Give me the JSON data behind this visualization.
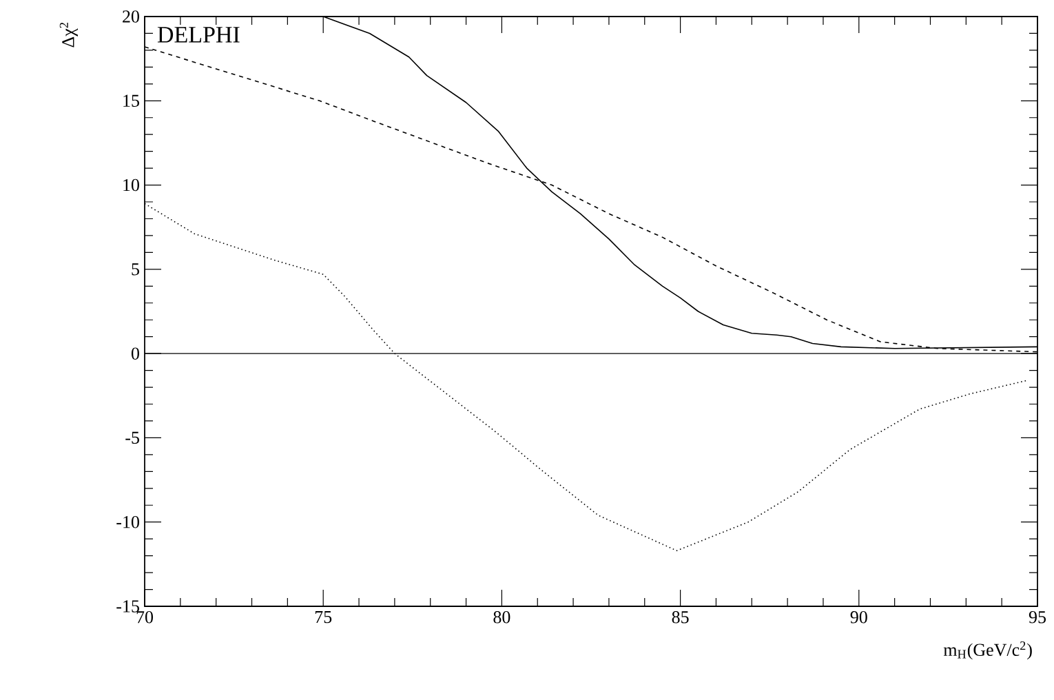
{
  "chart_data": {
    "type": "line",
    "xlabel": "m$_{H}$(GeV/c$^{2}$)",
    "ylabel": "Δχ$^{2}$",
    "annotations": [
      "DELPHI"
    ],
    "xlim": [
      70,
      95
    ],
    "xticks": [
      70,
      75,
      80,
      85,
      90,
      95
    ],
    "ylim": [
      -15,
      20
    ],
    "yticks": [
      -15,
      -10,
      -5,
      0,
      5,
      10,
      15,
      20
    ],
    "grid": false,
    "ref_lines": [
      {
        "axis": "y",
        "value": 0,
        "color": "#000000",
        "line_style": "solid"
      }
    ],
    "series": [
      {
        "color": "#000000",
        "line_style": "solid",
        "x": [
          75,
          76.3,
          77.4,
          77.9,
          79.0,
          79.9,
          80.7,
          81.4,
          82.2,
          83.0,
          83.7,
          84.5,
          85.0,
          85.5,
          86.2,
          87.0,
          87.7,
          88.1,
          88.7,
          89.5,
          91.0,
          95
        ],
        "values": [
          20,
          19.0,
          17.6,
          16.5,
          14.9,
          13.2,
          11.0,
          9.6,
          8.3,
          6.8,
          5.3,
          4.0,
          3.3,
          2.5,
          1.7,
          1.2,
          1.1,
          1.0,
          0.6,
          0.4,
          0.3,
          0.4
        ]
      },
      {
        "color": "#000000",
        "line_style": "dashed",
        "x": [
          70,
          74.9,
          76.4,
          79.6,
          81.4,
          83.0,
          84.5,
          86.0,
          87.6,
          89.1,
          90.6,
          92.2,
          95
        ],
        "values": [
          18.2,
          15.0,
          13.8,
          11.3,
          10.0,
          8.3,
          6.9,
          5.2,
          3.6,
          2.0,
          0.7,
          0.3,
          0.1
        ]
      },
      {
        "color": "#000000",
        "line_style": "dotted",
        "x": [
          70,
          71.4,
          73.7,
          75,
          75.6,
          76.4,
          77.0,
          79.8,
          81.1,
          82.7,
          84.9,
          86.9,
          88.3,
          89.75,
          91.7,
          93.1,
          94.7
        ],
        "values": [
          8.9,
          7.1,
          5.5,
          4.7,
          3.4,
          1.4,
          0,
          -4.6,
          -6.9,
          -9.6,
          -11.7,
          -10.0,
          -8.2,
          -5.7,
          -3.3,
          -2.4,
          -1.6
        ]
      }
    ]
  }
}
